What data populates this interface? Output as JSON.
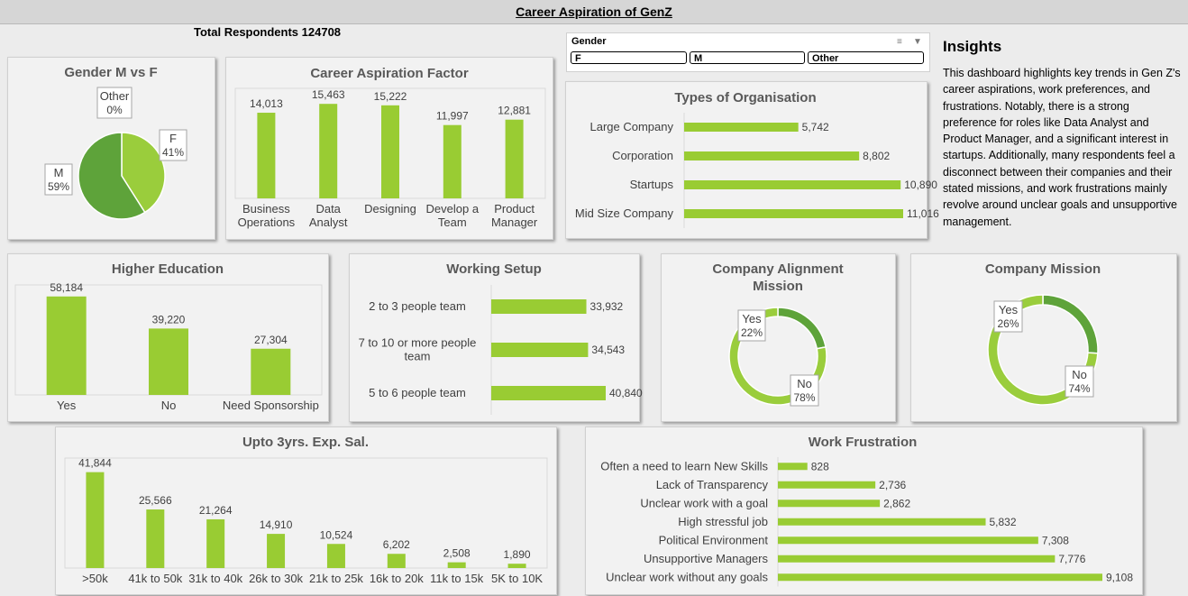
{
  "header": {
    "title": "Career Aspiration of GenZ",
    "respondents": "Total Respondents 124708"
  },
  "slicer": {
    "title": "Gender",
    "items": [
      "F",
      "M",
      "Other"
    ]
  },
  "insights": {
    "title": "Insights",
    "text": "This dashboard highlights key trends in Gen Z's career aspirations, work preferences, and frustrations. Notably, there is a strong preference for roles like Data Analyst and Product Manager, and a significant interest in startups. Additionally, many respondents feel a disconnect between their companies and their stated missions, and work frustrations mainly revolve around unclear goals and unsupportive management."
  },
  "colors": {
    "light_green": "#9ACD3C",
    "dark_green": "#5EA33A",
    "bar_green": "#99CC33"
  },
  "chart_data": [
    {
      "id": "gender",
      "type": "pie",
      "title": "Gender M vs F",
      "categories": [
        "F",
        "M",
        "Other"
      ],
      "values": [
        41,
        59,
        0
      ],
      "labels": [
        "41%",
        "59%",
        "0%"
      ]
    },
    {
      "id": "career",
      "type": "bar",
      "title": "Career Aspiration Factor",
      "categories": [
        [
          "Business",
          "Operations"
        ],
        [
          "Data",
          "Analyst"
        ],
        [
          "Designing"
        ],
        [
          "Develop a",
          "Team"
        ],
        [
          "Product",
          "Manager"
        ]
      ],
      "values": [
        14013,
        15463,
        15222,
        11997,
        12881
      ],
      "labels": [
        "14,013",
        "15,463",
        "15,222",
        "11,997",
        "12,881"
      ]
    },
    {
      "id": "org",
      "type": "bar",
      "orientation": "horizontal",
      "title": "Types of Organisation",
      "categories": [
        "Large Company",
        "Corporation",
        "Startups",
        "Mid Size Company"
      ],
      "values": [
        5742,
        8802,
        10890,
        11016
      ],
      "labels": [
        "5,742",
        "8,802",
        "10,890",
        "11,016"
      ]
    },
    {
      "id": "education",
      "type": "bar",
      "title": "Higher Education",
      "categories": [
        "Yes",
        "No",
        "Need Sponsorship"
      ],
      "values": [
        58184,
        39220,
        27304
      ],
      "labels": [
        "58,184",
        "39,220",
        "27,304"
      ]
    },
    {
      "id": "setup",
      "type": "bar",
      "orientation": "horizontal",
      "title": "Working Setup",
      "categories": [
        [
          "2 to 3 people team"
        ],
        [
          "7 to 10 or more people",
          "team"
        ],
        [
          "5 to 6 people team"
        ]
      ],
      "values": [
        33932,
        34543,
        40840
      ],
      "labels": [
        "33,932",
        "34,543",
        "40,840"
      ]
    },
    {
      "id": "alignment",
      "type": "pie",
      "donut": true,
      "title": "Company Alignment Mission",
      "categories": [
        "Yes",
        "No"
      ],
      "values": [
        22,
        78
      ],
      "labels": [
        "22%",
        "78%"
      ]
    },
    {
      "id": "mission",
      "type": "pie",
      "donut": true,
      "title": "Company Mission",
      "categories": [
        "Yes",
        "No"
      ],
      "values": [
        26,
        74
      ],
      "labels": [
        "26%",
        "74%"
      ]
    },
    {
      "id": "salary",
      "type": "bar",
      "title": "Upto 3yrs. Exp. Sal.",
      "categories": [
        ">50k",
        "41k to 50k",
        "31k to 40k",
        "26k to 30k",
        "21k to 25k",
        "16k to 20k",
        "11k to 15k",
        "5K to 10K"
      ],
      "values": [
        41844,
        25566,
        21264,
        14910,
        10524,
        6202,
        2508,
        1890
      ],
      "labels": [
        "41,844",
        "25,566",
        "21,264",
        "14,910",
        "10,524",
        "6,202",
        "2,508",
        "1,890"
      ]
    },
    {
      "id": "frustration",
      "type": "bar",
      "orientation": "horizontal",
      "title": "Work Frustration",
      "categories": [
        "Often a need to learn New Skills",
        "Lack of Transparency",
        "Unclear work with a goal",
        "High stressful job",
        "Political Environment",
        "Unsupportive Managers",
        "Unclear work without any goals"
      ],
      "values": [
        828,
        2736,
        2862,
        5832,
        7308,
        7776,
        9108
      ],
      "labels": [
        "828",
        "2,736",
        "2,862",
        "5,832",
        "7,308",
        "7,776",
        "9,108"
      ]
    }
  ]
}
